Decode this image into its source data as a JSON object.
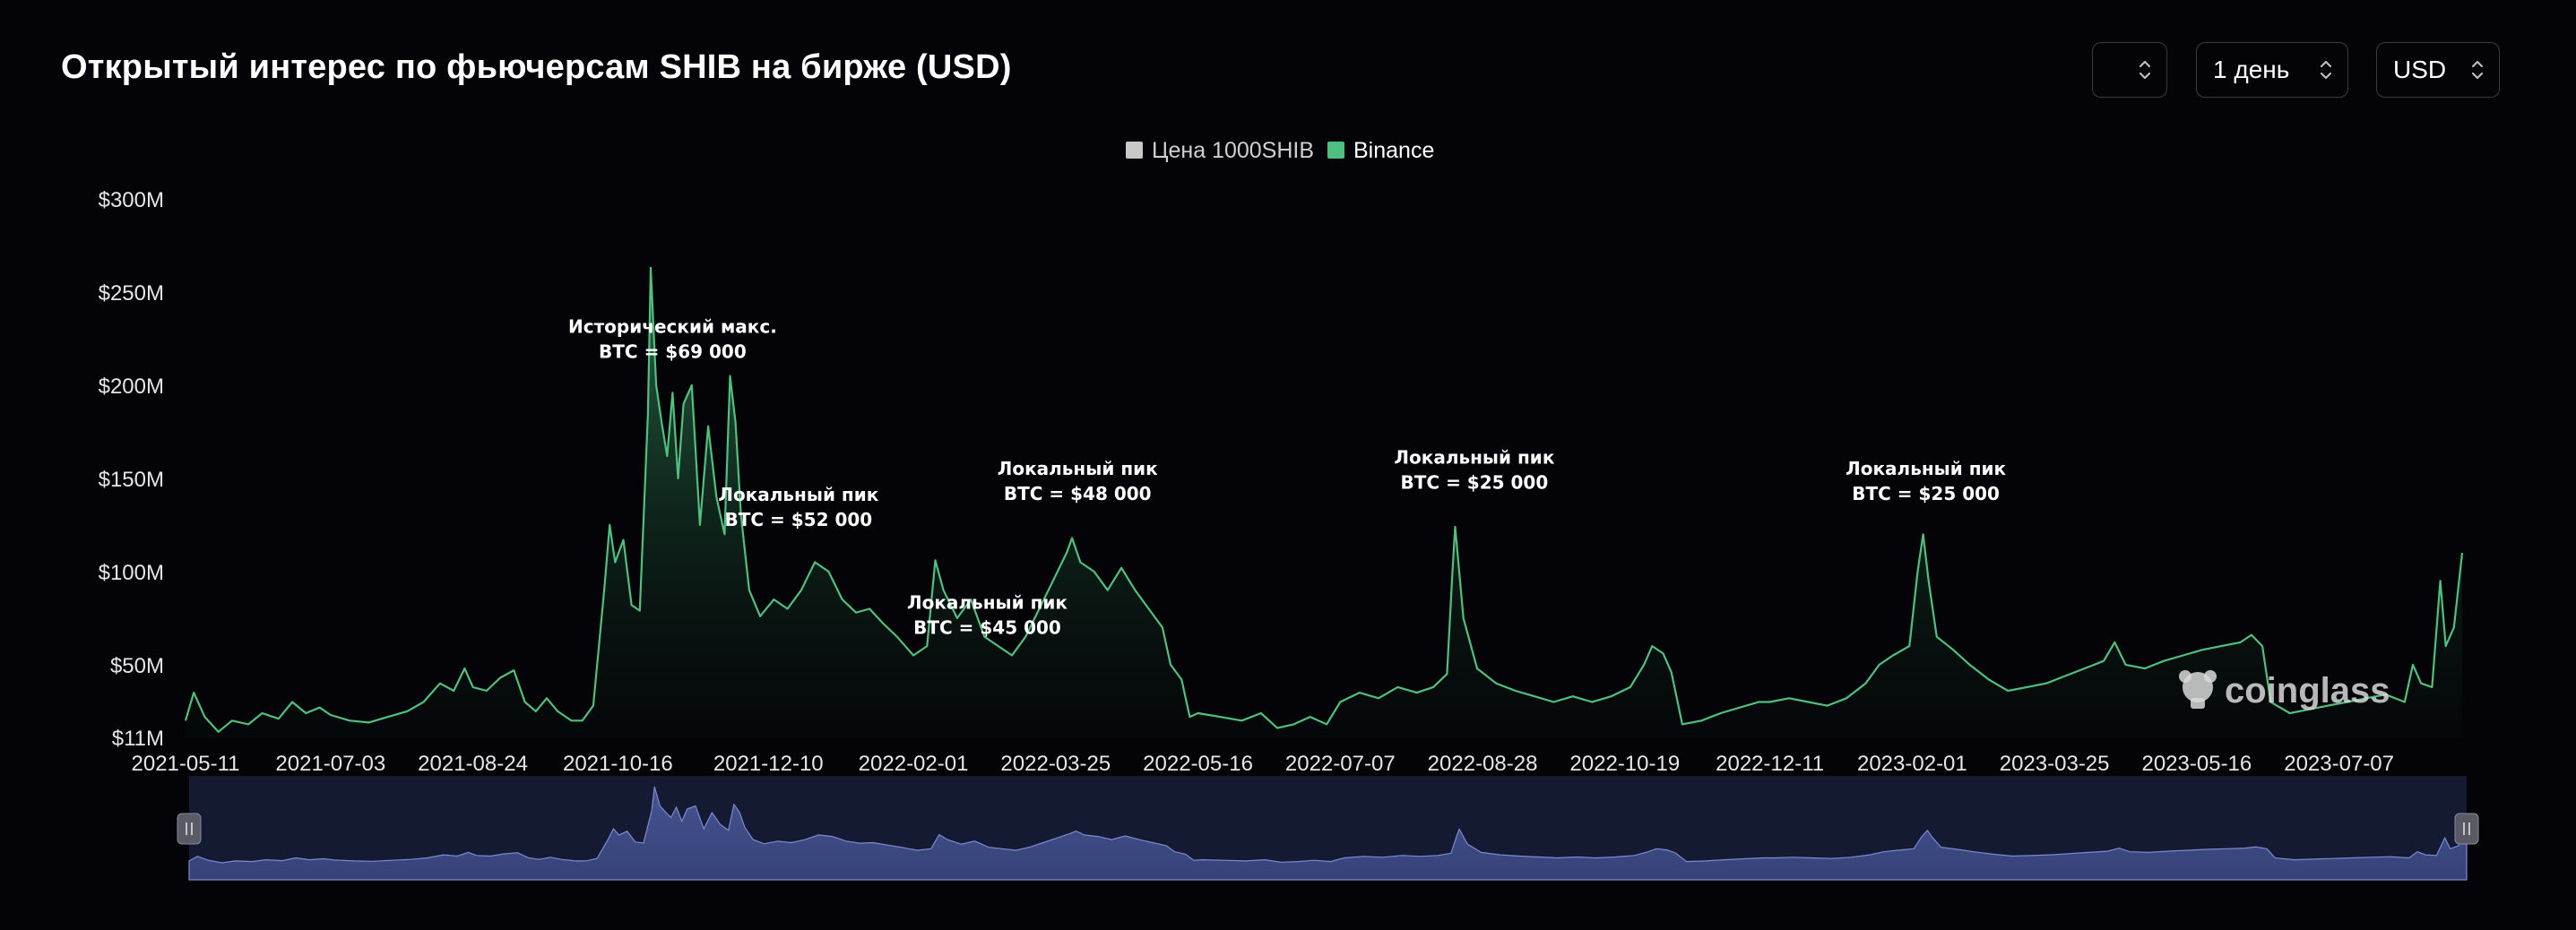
{
  "header": {
    "title": "Открытый интерес по фьючерсам SHIB на бирже (USD)",
    "selectors": [
      {
        "value": ""
      },
      {
        "value": "1 день"
      },
      {
        "value": "USD"
      }
    ]
  },
  "watermark": "coinglass",
  "chart_data": {
    "type": "area",
    "title": "Открытый интерес по фьючерсам SHIB на бирже (USD)",
    "legend": [
      {
        "name": "Цена 1000SHIB",
        "color": "#c8c8c8",
        "active": false
      },
      {
        "name": "Binance",
        "color": "#4fc07f",
        "active": true
      }
    ],
    "legend_position": "top-center",
    "y_ticks": [
      {
        "value": 11,
        "label": "$11M"
      },
      {
        "value": 50,
        "label": "$50M"
      },
      {
        "value": 100,
        "label": "$100M"
      },
      {
        "value": 150,
        "label": "$150M"
      },
      {
        "value": 200,
        "label": "$200M"
      },
      {
        "value": 250,
        "label": "$250M"
      },
      {
        "value": 300,
        "label": "$300M"
      }
    ],
    "ylim": [
      11,
      300
    ],
    "y_unit": "USD millions",
    "x_ticks": [
      "2021-05-11",
      "2021-07-03",
      "2021-08-24",
      "2021-10-16",
      "2021-12-10",
      "2022-02-01",
      "2022-03-25",
      "2022-05-16",
      "2022-07-07",
      "2022-08-28",
      "2022-10-19",
      "2022-12-11",
      "2023-02-01",
      "2023-03-25",
      "2023-05-16",
      "2023-07-07"
    ],
    "xlim": [
      "2021-05-11",
      "2023-08-21"
    ],
    "grid": false,
    "series": [
      {
        "name": "Binance",
        "color": "#4fc07f",
        "points": [
          [
            "2021-05-11",
            20
          ],
          [
            "2021-05-14",
            35
          ],
          [
            "2021-05-18",
            22
          ],
          [
            "2021-05-23",
            14
          ],
          [
            "2021-05-28",
            20
          ],
          [
            "2021-06-03",
            18
          ],
          [
            "2021-06-08",
            24
          ],
          [
            "2021-06-14",
            21
          ],
          [
            "2021-06-19",
            30
          ],
          [
            "2021-06-24",
            24
          ],
          [
            "2021-06-29",
            27
          ],
          [
            "2021-07-03",
            23
          ],
          [
            "2021-07-10",
            20
          ],
          [
            "2021-07-17",
            19
          ],
          [
            "2021-07-24",
            22
          ],
          [
            "2021-07-31",
            25
          ],
          [
            "2021-08-06",
            30
          ],
          [
            "2021-08-12",
            40
          ],
          [
            "2021-08-17",
            36
          ],
          [
            "2021-08-21",
            48
          ],
          [
            "2021-08-24",
            38
          ],
          [
            "2021-08-29",
            36
          ],
          [
            "2021-09-03",
            43
          ],
          [
            "2021-09-08",
            47
          ],
          [
            "2021-09-12",
            30
          ],
          [
            "2021-09-16",
            25
          ],
          [
            "2021-09-20",
            32
          ],
          [
            "2021-09-24",
            25
          ],
          [
            "2021-09-29",
            20
          ],
          [
            "2021-10-03",
            20
          ],
          [
            "2021-10-07",
            28
          ],
          [
            "2021-10-11",
            90
          ],
          [
            "2021-10-13",
            125
          ],
          [
            "2021-10-15",
            105
          ],
          [
            "2021-10-18",
            117
          ],
          [
            "2021-10-21",
            82
          ],
          [
            "2021-10-24",
            79
          ],
          [
            "2021-10-27",
            185
          ],
          [
            "2021-10-28",
            263
          ],
          [
            "2021-10-30",
            200
          ],
          [
            "2021-11-01",
            180
          ],
          [
            "2021-11-03",
            162
          ],
          [
            "2021-11-05",
            196
          ],
          [
            "2021-11-07",
            150
          ],
          [
            "2021-11-09",
            190
          ],
          [
            "2021-11-12",
            200
          ],
          [
            "2021-11-15",
            125
          ],
          [
            "2021-11-18",
            178
          ],
          [
            "2021-11-21",
            140
          ],
          [
            "2021-11-24",
            120
          ],
          [
            "2021-11-26",
            205
          ],
          [
            "2021-11-28",
            180
          ],
          [
            "2021-11-30",
            130
          ],
          [
            "2021-12-03",
            90
          ],
          [
            "2021-12-07",
            76
          ],
          [
            "2021-12-12",
            85
          ],
          [
            "2021-12-17",
            80
          ],
          [
            "2021-12-22",
            90
          ],
          [
            "2021-12-27",
            105
          ],
          [
            "2022-01-01",
            100
          ],
          [
            "2022-01-06",
            85
          ],
          [
            "2022-01-11",
            78
          ],
          [
            "2022-01-16",
            80
          ],
          [
            "2022-01-21",
            72
          ],
          [
            "2022-01-26",
            65
          ],
          [
            "2022-02-01",
            55
          ],
          [
            "2022-02-06",
            60
          ],
          [
            "2022-02-09",
            106
          ],
          [
            "2022-02-12",
            90
          ],
          [
            "2022-02-17",
            75
          ],
          [
            "2022-02-22",
            85
          ],
          [
            "2022-02-27",
            65
          ],
          [
            "2022-03-04",
            60
          ],
          [
            "2022-03-09",
            55
          ],
          [
            "2022-03-14",
            65
          ],
          [
            "2022-03-19",
            80
          ],
          [
            "2022-03-24",
            95
          ],
          [
            "2022-03-29",
            110
          ],
          [
            "2022-03-31",
            118
          ],
          [
            "2022-04-03",
            105
          ],
          [
            "2022-04-08",
            100
          ],
          [
            "2022-04-13",
            90
          ],
          [
            "2022-04-18",
            102
          ],
          [
            "2022-04-23",
            90
          ],
          [
            "2022-04-28",
            80
          ],
          [
            "2022-05-03",
            70
          ],
          [
            "2022-05-06",
            50
          ],
          [
            "2022-05-10",
            42
          ],
          [
            "2022-05-13",
            22
          ],
          [
            "2022-05-16",
            24
          ],
          [
            "2022-05-24",
            22
          ],
          [
            "2022-06-01",
            20
          ],
          [
            "2022-06-08",
            24
          ],
          [
            "2022-06-14",
            16
          ],
          [
            "2022-06-20",
            18
          ],
          [
            "2022-06-26",
            22
          ],
          [
            "2022-07-02",
            18
          ],
          [
            "2022-07-07",
            30
          ],
          [
            "2022-07-14",
            35
          ],
          [
            "2022-07-21",
            32
          ],
          [
            "2022-07-28",
            38
          ],
          [
            "2022-08-04",
            35
          ],
          [
            "2022-08-10",
            38
          ],
          [
            "2022-08-15",
            45
          ],
          [
            "2022-08-17",
            100
          ],
          [
            "2022-08-18",
            124
          ],
          [
            "2022-08-21",
            75
          ],
          [
            "2022-08-26",
            48
          ],
          [
            "2022-09-02",
            40
          ],
          [
            "2022-09-09",
            36
          ],
          [
            "2022-09-16",
            33
          ],
          [
            "2022-09-23",
            30
          ],
          [
            "2022-09-30",
            33
          ],
          [
            "2022-10-07",
            30
          ],
          [
            "2022-10-14",
            33
          ],
          [
            "2022-10-21",
            38
          ],
          [
            "2022-10-26",
            50
          ],
          [
            "2022-10-29",
            60
          ],
          [
            "2022-11-02",
            56
          ],
          [
            "2022-11-05",
            46
          ],
          [
            "2022-11-09",
            18
          ],
          [
            "2022-11-16",
            20
          ],
          [
            "2022-11-23",
            24
          ],
          [
            "2022-11-30",
            27
          ],
          [
            "2022-12-07",
            30
          ],
          [
            "2022-12-11",
            30
          ],
          [
            "2022-12-18",
            32
          ],
          [
            "2022-12-25",
            30
          ],
          [
            "2023-01-01",
            28
          ],
          [
            "2023-01-08",
            32
          ],
          [
            "2023-01-15",
            40
          ],
          [
            "2023-01-20",
            50
          ],
          [
            "2023-01-25",
            55
          ],
          [
            "2023-01-31",
            60
          ],
          [
            "2023-02-03",
            100
          ],
          [
            "2023-02-05",
            120
          ],
          [
            "2023-02-07",
            95
          ],
          [
            "2023-02-10",
            65
          ],
          [
            "2023-02-16",
            58
          ],
          [
            "2023-02-22",
            50
          ],
          [
            "2023-03-01",
            42
          ],
          [
            "2023-03-08",
            36
          ],
          [
            "2023-03-15",
            38
          ],
          [
            "2023-03-22",
            40
          ],
          [
            "2023-03-29",
            44
          ],
          [
            "2023-04-05",
            48
          ],
          [
            "2023-04-12",
            52
          ],
          [
            "2023-04-16",
            62
          ],
          [
            "2023-04-20",
            50
          ],
          [
            "2023-04-27",
            48
          ],
          [
            "2023-05-04",
            52
          ],
          [
            "2023-05-11",
            55
          ],
          [
            "2023-05-18",
            58
          ],
          [
            "2023-05-25",
            60
          ],
          [
            "2023-06-01",
            62
          ],
          [
            "2023-06-05",
            66
          ],
          [
            "2023-06-09",
            60
          ],
          [
            "2023-06-12",
            30
          ],
          [
            "2023-06-19",
            24
          ],
          [
            "2023-06-26",
            26
          ],
          [
            "2023-07-03",
            28
          ],
          [
            "2023-07-10",
            30
          ],
          [
            "2023-07-17",
            32
          ],
          [
            "2023-07-24",
            34
          ],
          [
            "2023-07-31",
            30
          ],
          [
            "2023-08-03",
            50
          ],
          [
            "2023-08-06",
            40
          ],
          [
            "2023-08-10",
            38
          ],
          [
            "2023-08-13",
            95
          ],
          [
            "2023-08-15",
            60
          ],
          [
            "2023-08-18",
            70
          ],
          [
            "2023-08-21",
            110
          ]
        ]
      }
    ],
    "annotations": [
      {
        "date": "2021-11-05",
        "value": 228,
        "lines": [
          "Исторический макс.",
          "BTC = $69 000"
        ]
      },
      {
        "date": "2021-12-21",
        "value": 138,
        "lines": [
          "Локальный пик",
          "BTC = $52 000"
        ]
      },
      {
        "date": "2022-02-28",
        "value": 80,
        "lines": [
          "Локальный пик",
          "BTC = $45 000"
        ]
      },
      {
        "date": "2022-04-02",
        "value": 152,
        "lines": [
          "Локальный пик",
          "BTC = $48 000"
        ]
      },
      {
        "date": "2022-08-25",
        "value": 158,
        "lines": [
          "Локальный пик",
          "BTC = $25 000"
        ]
      },
      {
        "date": "2023-02-06",
        "value": 152,
        "lines": [
          "Локальный пик",
          "BTC = $25 000"
        ]
      }
    ],
    "navigator": {
      "range": [
        "2021-05-11",
        "2023-08-21"
      ]
    }
  }
}
